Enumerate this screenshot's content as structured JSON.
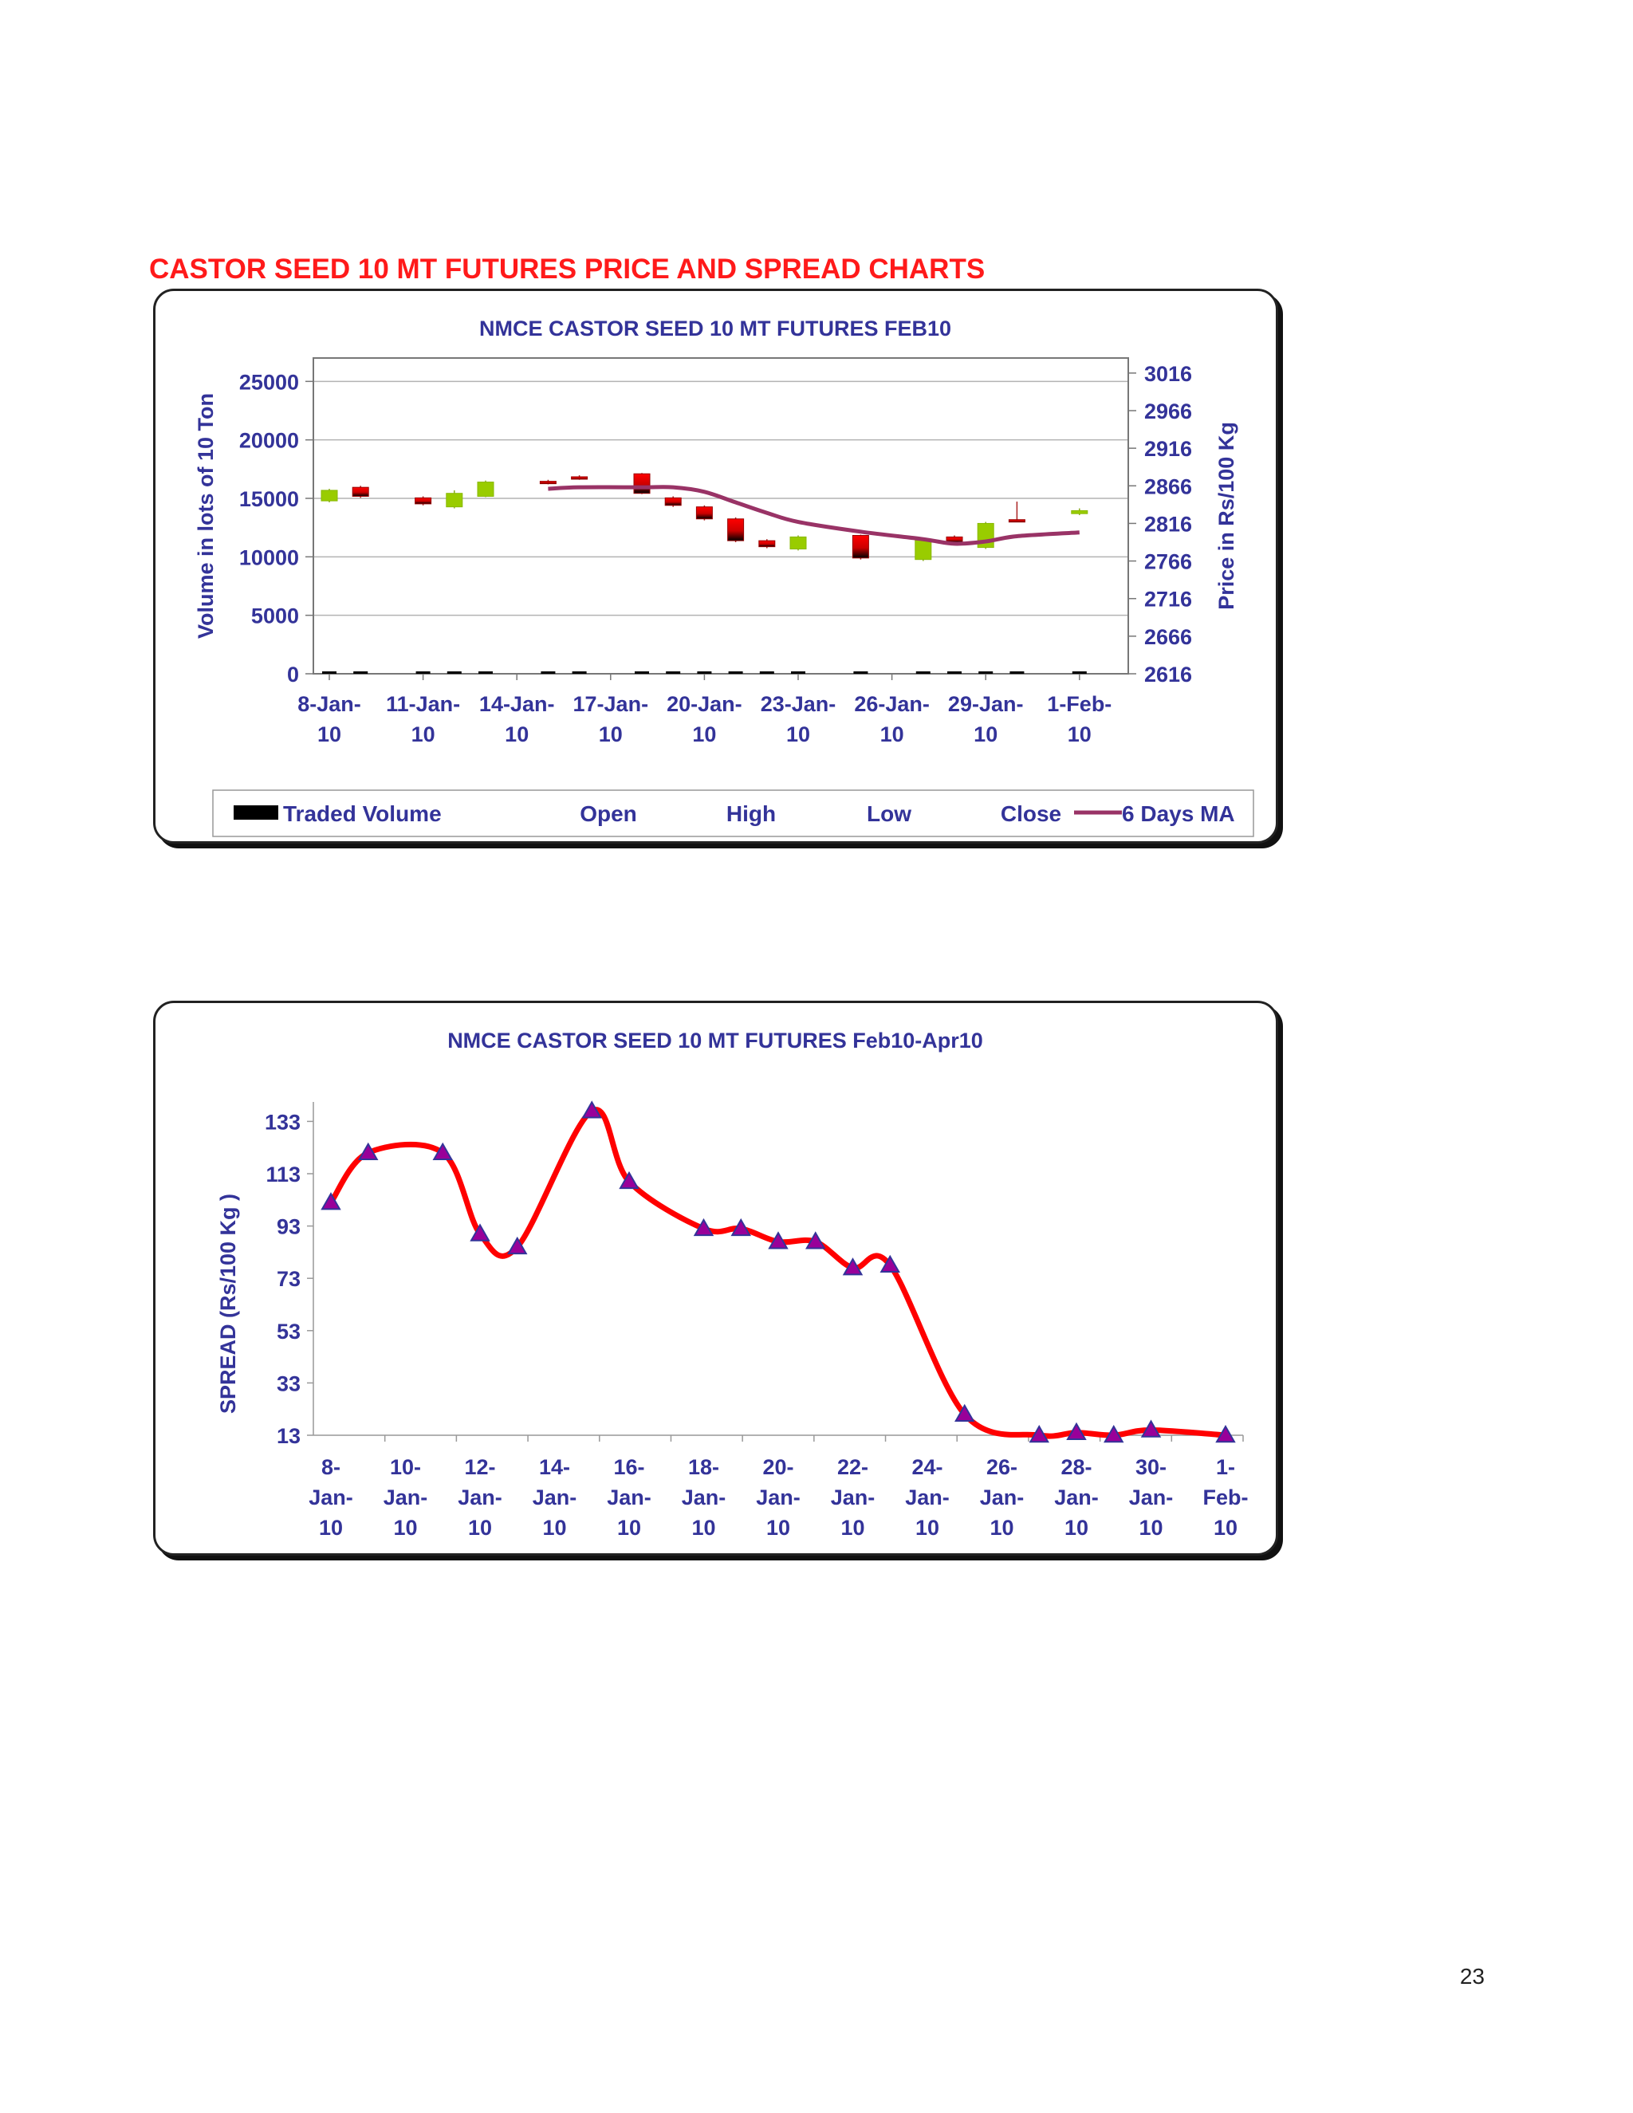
{
  "page": {
    "section_title": "CASTOR SEED 10 MT FUTURES PRICE AND SPREAD CHARTS",
    "page_number": "23"
  },
  "chart_data": [
    {
      "type": "candlestick-volume",
      "title": "NMCE CASTOR SEED 10 MT FUTURES FEB10",
      "ylabel_left": "Volume in lots of 10 Ton",
      "ylabel_right": "Price in Rs/100 Kg",
      "ylim_left": [
        0,
        27000
      ],
      "ylim_right": [
        2616,
        3036
      ],
      "yticks_left": [
        0,
        5000,
        10000,
        15000,
        20000,
        25000
      ],
      "yticks_right": [
        2616,
        2666,
        2716,
        2766,
        2816,
        2866,
        2916,
        2966,
        3016
      ],
      "xtick_labels": [
        [
          "8-Jan-",
          "10"
        ],
        [
          "11-Jan-",
          "10"
        ],
        [
          "14-Jan-",
          "10"
        ],
        [
          "17-Jan-",
          "10"
        ],
        [
          "20-Jan-",
          "10"
        ],
        [
          "23-Jan-",
          "10"
        ],
        [
          "26-Jan-",
          "10"
        ],
        [
          "29-Jan-",
          "10"
        ],
        [
          "1-Feb-",
          "10"
        ]
      ],
      "grid": true,
      "legend": [
        "Traded Volume",
        "Open",
        "High",
        "Low",
        "Close",
        "6 Days MA"
      ],
      "legend_position": "bottom",
      "colors": {
        "up": "#99cc00",
        "down": "#ff0000",
        "ma": "#993366",
        "volume": "#000000",
        "text": "#333399"
      },
      "day_range": [
        0,
        25
      ],
      "candles": [
        {
          "d": 0,
          "open": 2846,
          "close": 2860,
          "high": 2862,
          "low": 2844
        },
        {
          "d": 1,
          "open": 2864,
          "close": 2852,
          "high": 2866,
          "low": 2850
        },
        {
          "d": 3,
          "open": 2850,
          "close": 2842,
          "high": 2852,
          "low": 2840
        },
        {
          "d": 4,
          "open": 2838,
          "close": 2856,
          "high": 2860,
          "low": 2836
        },
        {
          "d": 5,
          "open": 2852,
          "close": 2871,
          "high": 2873,
          "low": 2851
        },
        {
          "d": 7,
          "open": 2872,
          "close": 2870,
          "high": 2874,
          "low": 2868
        },
        {
          "d": 8,
          "open": 2878,
          "close": 2876,
          "high": 2880,
          "low": 2874
        },
        {
          "d": 10,
          "open": 2882,
          "close": 2856,
          "high": 2883,
          "low": 2855
        },
        {
          "d": 11,
          "open": 2850,
          "close": 2840,
          "high": 2852,
          "low": 2838
        },
        {
          "d": 12,
          "open": 2838,
          "close": 2822,
          "high": 2840,
          "low": 2820
        },
        {
          "d": 13,
          "open": 2822,
          "close": 2793,
          "high": 2824,
          "low": 2791
        },
        {
          "d": 14,
          "open": 2793,
          "close": 2785,
          "high": 2795,
          "low": 2783
        },
        {
          "d": 15,
          "open": 2782,
          "close": 2798,
          "high": 2800,
          "low": 2780
        },
        {
          "d": 17,
          "open": 2800,
          "close": 2770,
          "high": 2801,
          "low": 2768
        },
        {
          "d": 19,
          "open": 2768,
          "close": 2794,
          "high": 2795,
          "low": 2766
        },
        {
          "d": 20,
          "open": 2798,
          "close": 2791,
          "high": 2800,
          "low": 2789
        },
        {
          "d": 21,
          "open": 2784,
          "close": 2816,
          "high": 2818,
          "low": 2782
        },
        {
          "d": 22,
          "open": 2821,
          "close": 2820,
          "high": 2845,
          "low": 2819
        },
        {
          "d": 24,
          "open": 2829,
          "close": 2833,
          "high": 2836,
          "low": 2827
        }
      ],
      "volume": [
        {
          "d": 0,
          "v": 150
        },
        {
          "d": 1,
          "v": 120
        },
        {
          "d": 3,
          "v": 140
        },
        {
          "d": 4,
          "v": 110
        },
        {
          "d": 5,
          "v": 130
        },
        {
          "d": 7,
          "v": 80
        },
        {
          "d": 8,
          "v": 90
        },
        {
          "d": 10,
          "v": 100
        },
        {
          "d": 11,
          "v": 110
        },
        {
          "d": 12,
          "v": 140
        },
        {
          "d": 13,
          "v": 100
        },
        {
          "d": 14,
          "v": 90
        },
        {
          "d": 15,
          "v": 80
        },
        {
          "d": 17,
          "v": 70
        },
        {
          "d": 19,
          "v": 90
        },
        {
          "d": 20,
          "v": 80
        },
        {
          "d": 21,
          "v": 70
        },
        {
          "d": 22,
          "v": 60
        },
        {
          "d": 24,
          "v": 80
        }
      ],
      "ma": [
        {
          "d": 7,
          "v": 2862
        },
        {
          "d": 8,
          "v": 2864
        },
        {
          "d": 10,
          "v": 2864
        },
        {
          "d": 11,
          "v": 2864
        },
        {
          "d": 12,
          "v": 2858
        },
        {
          "d": 13,
          "v": 2844
        },
        {
          "d": 14,
          "v": 2830
        },
        {
          "d": 15,
          "v": 2818
        },
        {
          "d": 17,
          "v": 2805
        },
        {
          "d": 19,
          "v": 2795
        },
        {
          "d": 20,
          "v": 2789
        },
        {
          "d": 21,
          "v": 2792
        },
        {
          "d": 22,
          "v": 2799
        },
        {
          "d": 24,
          "v": 2804
        }
      ]
    },
    {
      "type": "line",
      "title": "NMCE CASTOR SEED 10 MT FUTURES Feb10-Apr10",
      "ylabel": "SPREAD (Rs/100 Kg    )",
      "ylim": [
        13,
        138
      ],
      "yticks": [
        13,
        33,
        53,
        73,
        93,
        113,
        133
      ],
      "xtick_labels": [
        [
          "8-",
          "Jan-",
          "10"
        ],
        [
          "10-",
          "Jan-",
          "10"
        ],
        [
          "12-",
          "Jan-",
          "10"
        ],
        [
          "14-",
          "Jan-",
          "10"
        ],
        [
          "16-",
          "Jan-",
          "10"
        ],
        [
          "18-",
          "Jan-",
          "10"
        ],
        [
          "20-",
          "Jan-",
          "10"
        ],
        [
          "22-",
          "Jan-",
          "10"
        ],
        [
          "24-",
          "Jan-",
          "10"
        ],
        [
          "26-",
          "Jan-",
          "10"
        ],
        [
          "28-",
          "Jan-",
          "10"
        ],
        [
          "30-",
          "Jan-",
          "10"
        ],
        [
          "1-",
          "Feb-",
          "10"
        ]
      ],
      "grid": false,
      "legend": "none",
      "colors": {
        "line": "#ff0000",
        "marker": "#990099",
        "marker_edge": "#333399",
        "text": "#333399"
      },
      "day_range": [
        0,
        24
      ],
      "points": [
        {
          "d": 0,
          "v": 102
        },
        {
          "d": 1,
          "v": 121
        },
        {
          "d": 3,
          "v": 121
        },
        {
          "d": 4,
          "v": 90
        },
        {
          "d": 5,
          "v": 85
        },
        {
          "d": 7,
          "v": 137
        },
        {
          "d": 8,
          "v": 110
        },
        {
          "d": 10,
          "v": 92
        },
        {
          "d": 11,
          "v": 92
        },
        {
          "d": 12,
          "v": 87
        },
        {
          "d": 13,
          "v": 87
        },
        {
          "d": 14,
          "v": 77
        },
        {
          "d": 15,
          "v": 78
        },
        {
          "d": 17,
          "v": 21
        },
        {
          "d": 19,
          "v": 13
        },
        {
          "d": 20,
          "v": 14
        },
        {
          "d": 21,
          "v": 13
        },
        {
          "d": 22,
          "v": 15
        },
        {
          "d": 24,
          "v": 13
        }
      ]
    }
  ]
}
